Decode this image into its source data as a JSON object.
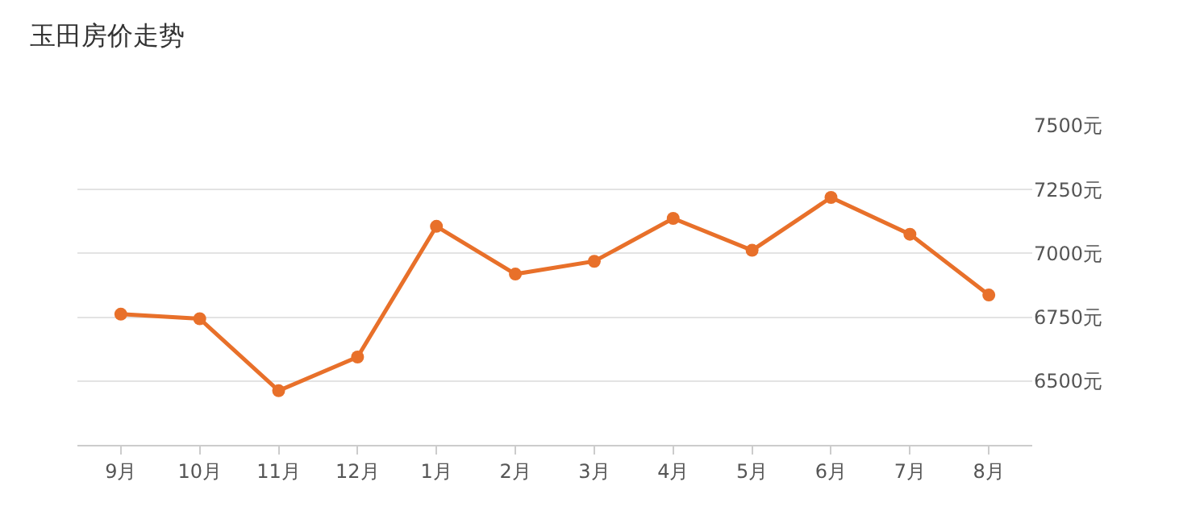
{
  "chart_data": {
    "type": "line",
    "title": "玉田房价走势",
    "categories": [
      "9月",
      "10月",
      "11月",
      "12月",
      "1月",
      "2月",
      "3月",
      "4月",
      "5月",
      "6月",
      "7月",
      "8月"
    ],
    "series": [
      {
        "color": "#e8702a",
        "values": [
          6762,
          6744,
          6462,
          6594,
          7106,
          6919,
          6969,
          7137,
          7012,
          7219,
          7075,
          6837
        ]
      }
    ],
    "ylim": [
      6250,
      7500
    ],
    "yticks": [
      {
        "value": 6500,
        "label": "6500元"
      },
      {
        "value": 6750,
        "label": "6750元"
      },
      {
        "value": 7000,
        "label": "7000元"
      },
      {
        "value": 7250,
        "label": "7250元"
      },
      {
        "value": 7500,
        "label": "7500元"
      }
    ],
    "grid": "y",
    "marker": "circle",
    "line_style": "solid",
    "legend": false
  }
}
